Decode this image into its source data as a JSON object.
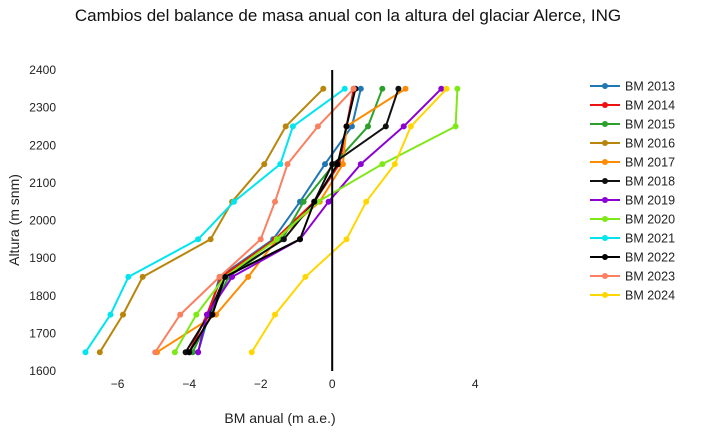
{
  "chart_data": {
    "type": "line",
    "title": "Cambios del balance de masa anual con la altura del glaciar Alerce, ING",
    "xlabel": "BM anual (m a.e.)",
    "ylabel": "Altura (m snm)",
    "xlim": [
      -7.5,
      5
    ],
    "ylim": [
      1600,
      2400
    ],
    "xticks": [
      -6,
      -4,
      -2,
      0,
      4
    ],
    "xtick_labels": [
      "−6",
      "−4",
      "−2",
      "0",
      "4"
    ],
    "yticks": [
      1600,
      1700,
      1800,
      1900,
      2000,
      2100,
      2200,
      2300,
      2400
    ],
    "grid": false,
    "zero_line": true,
    "legend_position": "right",
    "y": [
      1650,
      1750,
      1850,
      1950,
      2050,
      2150,
      2250,
      2350
    ],
    "series": [
      {
        "name": "BM 2013",
        "color": "#1f77b4",
        "x": [
          -3.75,
          -3.45,
          -3.15,
          -1.65,
          -0.9,
          -0.2,
          0.55,
          0.8
        ]
      },
      {
        "name": "BM 2014",
        "color": "#ee1111",
        "x": [
          -4.0,
          -3.5,
          -3.1,
          -1.6,
          -0.5,
          0.2,
          0.4,
          0.6
        ]
      },
      {
        "name": "BM 2015",
        "color": "#2ca02c",
        "x": [
          -3.9,
          -3.4,
          -2.9,
          -1.4,
          -0.8,
          0.05,
          1.0,
          1.4
        ]
      },
      {
        "name": "BM 2016",
        "color": "#b8860b",
        "x": [
          -6.5,
          -5.85,
          -5.3,
          -3.4,
          -2.8,
          -1.9,
          -1.3,
          -0.25
        ]
      },
      {
        "name": "BM 2017",
        "color": "#ff8c00",
        "x": [
          -4.9,
          -3.25,
          -2.35,
          -1.55,
          -0.35,
          0.3,
          0.4,
          2.05
        ]
      },
      {
        "name": "BM 2018",
        "color": "#111111",
        "x": [
          -4.1,
          -3.45,
          -3.0,
          -1.35,
          -0.5,
          0.0,
          1.5,
          1.85
        ]
      },
      {
        "name": "BM 2019",
        "color": "#8b00d4",
        "x": [
          -3.75,
          -3.5,
          -2.8,
          -0.9,
          -0.1,
          0.8,
          2.0,
          3.05
        ]
      },
      {
        "name": "BM 2020",
        "color": "#7fe817",
        "x": [
          -4.4,
          -3.8,
          -3.0,
          -1.55,
          -0.4,
          1.4,
          3.45,
          3.5
        ]
      },
      {
        "name": "BM 2021",
        "color": "#00e5ee",
        "x": [
          -6.9,
          -6.2,
          -5.7,
          -3.75,
          -2.75,
          -1.45,
          -1.1,
          0.35
        ]
      },
      {
        "name": "BM 2022",
        "color": "#000000",
        "x": [
          -4.0,
          -3.35,
          -3.0,
          -0.9,
          -0.5,
          0.15,
          0.4,
          0.65
        ]
      },
      {
        "name": "BM 2023",
        "color": "#fa8060",
        "x": [
          -4.95,
          -4.25,
          -3.15,
          -2.0,
          -1.6,
          -1.25,
          -0.4,
          0.6
        ]
      },
      {
        "name": "BM 2024",
        "color": "#ffd700",
        "x": [
          -2.25,
          -1.6,
          -0.75,
          0.4,
          0.95,
          1.75,
          2.2,
          3.2
        ]
      }
    ]
  }
}
